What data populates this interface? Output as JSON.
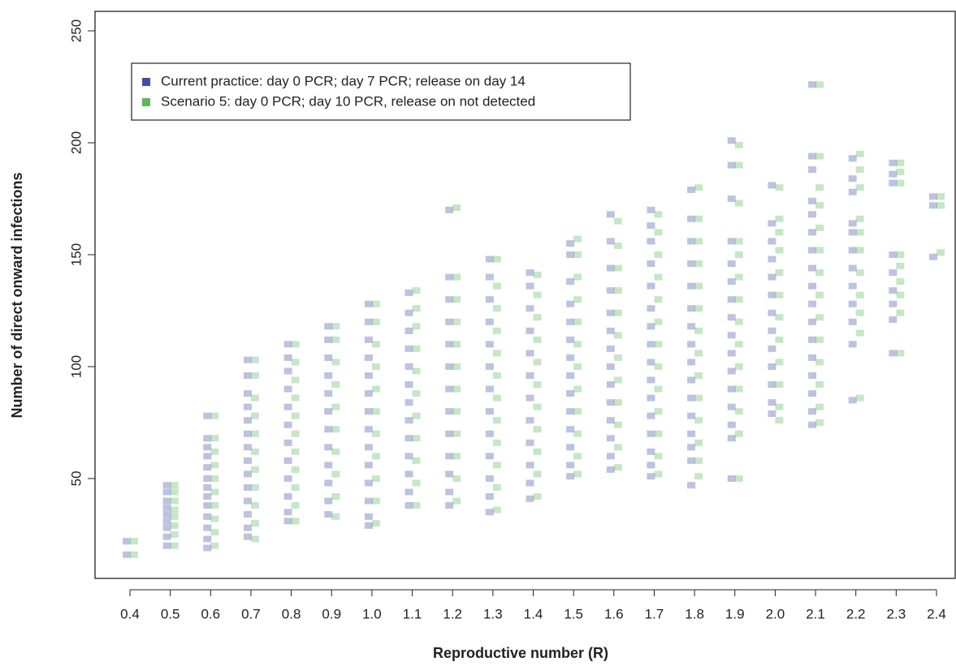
{
  "chart_data": {
    "type": "strip",
    "x_label": "Reproductive number (R)",
    "y_label": "Number of direct onward infections",
    "categories": [
      "0.4",
      "0.5",
      "0.6",
      "0.7",
      "0.8",
      "0.9",
      "1.0",
      "1.1",
      "1.2",
      "1.3",
      "1.4",
      "1.5",
      "1.6",
      "1.7",
      "1.8",
      "1.9",
      "2.0",
      "2.1",
      "2.2",
      "2.3",
      "2.4"
    ],
    "ylim": [
      5.4,
      258.7
    ],
    "yticks": [
      50,
      100,
      150,
      200,
      250
    ],
    "legend": "top-left",
    "series": [
      {
        "name": "Current practice: day 0 PCR; day 7 PCR; release on day 14",
        "color": "#3f4fa3",
        "values": [
          [
            16,
            22
          ],
          [
            20,
            24,
            28,
            31,
            34,
            37,
            40,
            44,
            47
          ],
          [
            19,
            23,
            28,
            33,
            38,
            42,
            46,
            50,
            55,
            60,
            64,
            68,
            78
          ],
          [
            24,
            28,
            34,
            40,
            46,
            52,
            58,
            64,
            70,
            76,
            82,
            88,
            96,
            103
          ],
          [
            31,
            35,
            42,
            50,
            58,
            66,
            74,
            82,
            90,
            98,
            104,
            110
          ],
          [
            34,
            40,
            48,
            56,
            64,
            72,
            80,
            88,
            96,
            104,
            112,
            118
          ],
          [
            29,
            33,
            40,
            48,
            56,
            64,
            72,
            80,
            88,
            96,
            104,
            112,
            120,
            128
          ],
          [
            38,
            44,
            52,
            60,
            68,
            76,
            84,
            92,
            100,
            108,
            116,
            124,
            133
          ],
          [
            38,
            44,
            52,
            60,
            70,
            80,
            90,
            100,
            110,
            120,
            130,
            140,
            170
          ],
          [
            35,
            42,
            50,
            60,
            70,
            80,
            90,
            100,
            110,
            120,
            130,
            140,
            148
          ],
          [
            41,
            48,
            56,
            66,
            76,
            86,
            96,
            106,
            116,
            126,
            136,
            142
          ],
          [
            51,
            56,
            64,
            72,
            80,
            88,
            96,
            104,
            112,
            120,
            128,
            138,
            150,
            155
          ],
          [
            54,
            60,
            68,
            76,
            84,
            92,
            100,
            108,
            116,
            124,
            134,
            144,
            156,
            168
          ],
          [
            51,
            56,
            62,
            70,
            78,
            86,
            94,
            102,
            110,
            118,
            126,
            136,
            146,
            156,
            163,
            170
          ],
          [
            47,
            58,
            64,
            70,
            78,
            86,
            94,
            102,
            110,
            118,
            126,
            136,
            146,
            156,
            166,
            179
          ],
          [
            50,
            68,
            74,
            82,
            90,
            98,
            106,
            114,
            122,
            130,
            138,
            146,
            156,
            175,
            190,
            201
          ],
          [
            79,
            84,
            92,
            100,
            108,
            116,
            124,
            132,
            140,
            148,
            156,
            164,
            181
          ],
          [
            74,
            80,
            88,
            96,
            104,
            112,
            120,
            128,
            136,
            144,
            152,
            160,
            168,
            174,
            188,
            194,
            226
          ],
          [
            85,
            110,
            120,
            128,
            136,
            144,
            152,
            160,
            164,
            178,
            184,
            193
          ],
          [
            106,
            121,
            128,
            134,
            142,
            150,
            182,
            186,
            191
          ],
          [
            149,
            172,
            176
          ]
        ]
      },
      {
        "name": "Scenario 5: day 0 PCR; day 10 PCR, release on not detected",
        "color": "#5cb85c",
        "values": [
          [
            16,
            22
          ],
          [
            20,
            25,
            29,
            33,
            36,
            40,
            44,
            47
          ],
          [
            20,
            26,
            32,
            38,
            44,
            50,
            56,
            62,
            68,
            78
          ],
          [
            23,
            30,
            38,
            46,
            54,
            62,
            70,
            78,
            86,
            96,
            103
          ],
          [
            31,
            38,
            46,
            54,
            62,
            70,
            78,
            86,
            94,
            102,
            110
          ],
          [
            33,
            42,
            52,
            62,
            72,
            82,
            92,
            102,
            112,
            118
          ],
          [
            30,
            40,
            50,
            60,
            70,
            80,
            90,
            100,
            110,
            120,
            128
          ],
          [
            38,
            48,
            58,
            68,
            78,
            88,
            98,
            108,
            118,
            126,
            134
          ],
          [
            40,
            50,
            60,
            70,
            80,
            90,
            100,
            110,
            120,
            130,
            140,
            171
          ],
          [
            36,
            46,
            56,
            66,
            76,
            86,
            96,
            106,
            116,
            126,
            136,
            148
          ],
          [
            42,
            52,
            62,
            72,
            82,
            92,
            102,
            112,
            122,
            132,
            141
          ],
          [
            52,
            60,
            70,
            80,
            90,
            100,
            110,
            120,
            130,
            140,
            150,
            157
          ],
          [
            55,
            64,
            74,
            84,
            94,
            104,
            114,
            124,
            134,
            144,
            154,
            165
          ],
          [
            52,
            60,
            70,
            80,
            90,
            100,
            110,
            120,
            130,
            140,
            150,
            160,
            168
          ],
          [
            51,
            58,
            66,
            76,
            86,
            96,
            106,
            116,
            126,
            136,
            146,
            156,
            166,
            180
          ],
          [
            50,
            70,
            80,
            90,
            100,
            110,
            120,
            130,
            140,
            150,
            156,
            173,
            190,
            199
          ],
          [
            76,
            82,
            92,
            102,
            112,
            122,
            132,
            142,
            152,
            160,
            166,
            180
          ],
          [
            75,
            82,
            92,
            102,
            112,
            122,
            132,
            142,
            152,
            162,
            172,
            180,
            194,
            226
          ],
          [
            86,
            115,
            124,
            132,
            142,
            152,
            160,
            166,
            180,
            188,
            195
          ],
          [
            106,
            124,
            132,
            138,
            145,
            150,
            182,
            187,
            191
          ],
          [
            151,
            172,
            176
          ]
        ]
      }
    ]
  }
}
